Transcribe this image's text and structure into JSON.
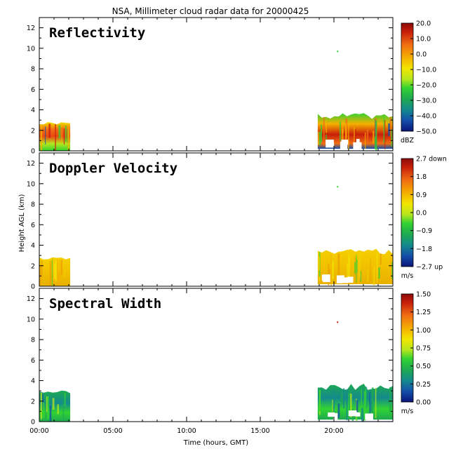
{
  "title": "NSA, Millimeter cloud radar data for 20000425",
  "xlabel": "Time (hours, GMT)",
  "ylabel": "Height AGL (km)",
  "x_ticks": [
    "00:00",
    "05:00",
    "10:00",
    "15:00",
    "20:00"
  ],
  "x_tick_hours": [
    0,
    5,
    10,
    15,
    20
  ],
  "y_ticks": [
    "0",
    "2",
    "4",
    "6",
    "8",
    "10",
    "12"
  ],
  "chart_data": [
    {
      "type": "heatmap",
      "name": "Reflectivity",
      "xlim_hours": [
        0,
        24
      ],
      "ylim_km": [
        0,
        13
      ],
      "units": "dBZ",
      "colorbar_range": [
        -50,
        20
      ],
      "colorbar_ticks": [
        "20.0",
        "10.0",
        "0.0",
        "−10.0",
        "−20.0",
        "−30.0",
        "−40.0",
        "−50.0"
      ],
      "colorbar_unit_label": "dBZ",
      "cloud_layers": [
        {
          "start_hour": 0.0,
          "end_hour": 2.1,
          "base_km": 0.0,
          "top_km": 2.9
        },
        {
          "start_hour": 18.9,
          "end_hour": 24.0,
          "base_km": 0.2,
          "top_km": 3.6
        }
      ],
      "isolated_returns": [
        {
          "hour": 20.2,
          "height_km": 9.7
        }
      ]
    },
    {
      "type": "heatmap",
      "name": "Doppler Velocity",
      "xlim_hours": [
        0,
        24
      ],
      "ylim_km": [
        0,
        13
      ],
      "units": "m/s",
      "colorbar_range": [
        -2.7,
        2.7
      ],
      "colorbar_ticks": [
        "2.7 down",
        "1.8",
        "0.9",
        "0.0",
        "−0.9",
        "−1.8",
        "−2.7 up"
      ],
      "colorbar_unit_label": "m/s",
      "cloud_layers": [
        {
          "start_hour": 0.0,
          "end_hour": 2.1,
          "base_km": 0.0,
          "top_km": 2.9
        },
        {
          "start_hour": 18.9,
          "end_hour": 24.0,
          "base_km": 0.2,
          "top_km": 3.6
        }
      ],
      "isolated_returns": [
        {
          "hour": 20.2,
          "height_km": 9.7
        }
      ]
    },
    {
      "type": "heatmap",
      "name": "Spectral Width",
      "xlim_hours": [
        0,
        24
      ],
      "ylim_km": [
        0,
        13
      ],
      "units": "m/s",
      "colorbar_range": [
        0,
        1.5
      ],
      "colorbar_ticks": [
        "1.50",
        "1.25",
        "1.00",
        "0.75",
        "0.50",
        "0.25",
        "0.00"
      ],
      "colorbar_unit_label": "m/s",
      "cloud_layers": [
        {
          "start_hour": 0.0,
          "end_hour": 2.1,
          "base_km": 0.0,
          "top_km": 3.1
        },
        {
          "start_hour": 18.9,
          "end_hour": 24.0,
          "base_km": 0.2,
          "top_km": 3.6
        }
      ],
      "isolated_returns": [
        {
          "hour": 20.2,
          "height_km": 9.7
        }
      ]
    }
  ],
  "colors": {
    "frame": "#000000",
    "background": "#ffffff"
  }
}
